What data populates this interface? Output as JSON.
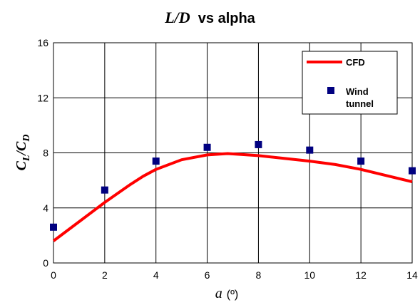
{
  "chart_data": {
    "type": "line",
    "title_main": "L/D",
    "title_rest": "vs alpha",
    "xlabel_symbol": "a",
    "xlabel_unit": "(º)",
    "ylabel_main": "C",
    "ylabel_sub_1": "L",
    "ylabel_slash": "/C",
    "ylabel_sub_2": "D",
    "xlim": [
      0,
      14
    ],
    "ylim": [
      0,
      16
    ],
    "xticks": [
      0,
      2,
      4,
      6,
      8,
      10,
      12,
      14
    ],
    "yticks": [
      0,
      4,
      8,
      12,
      16
    ],
    "grid": true,
    "legend_position": "top-right",
    "series": [
      {
        "name": "CFD",
        "kind": "line",
        "color": "#ff0000",
        "x": [
          0,
          1,
          2,
          3,
          3.5,
          4,
          5,
          6,
          6.8,
          8,
          9,
          10,
          11,
          12,
          13,
          14
        ],
        "y": [
          1.6,
          3.0,
          4.4,
          5.7,
          6.3,
          6.8,
          7.5,
          7.85,
          7.95,
          7.8,
          7.6,
          7.4,
          7.15,
          6.8,
          6.35,
          5.9
        ]
      },
      {
        "name": "Wind tunnel",
        "name_lines": [
          "Wind",
          "tunnel"
        ],
        "kind": "scatter",
        "color": "#000080",
        "x": [
          0,
          2,
          4,
          6,
          8,
          10,
          12,
          14
        ],
        "y": [
          2.6,
          5.3,
          7.4,
          8.4,
          8.6,
          8.2,
          7.4,
          6.7
        ]
      }
    ]
  }
}
